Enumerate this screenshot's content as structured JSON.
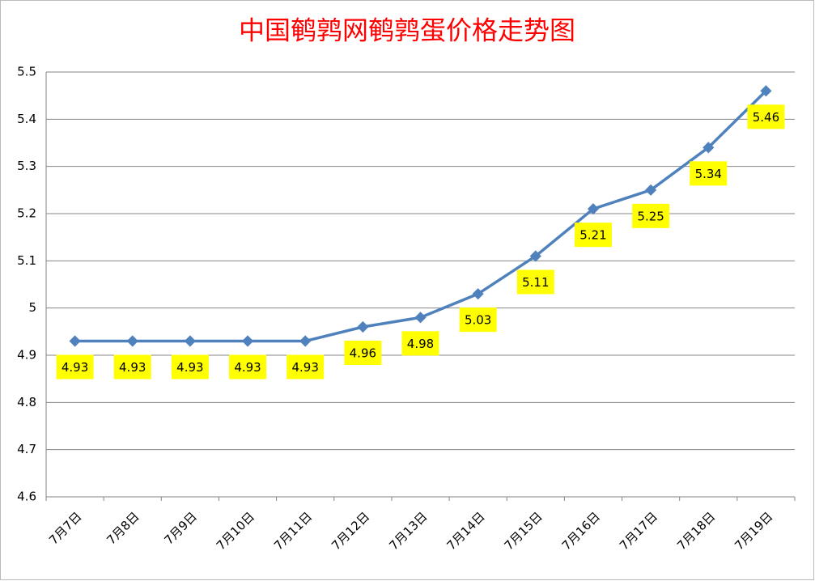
{
  "chart_data": {
    "type": "line",
    "title": "中国鹌鹑网鹌鹑蛋价格走势图",
    "categories": [
      "7月7日",
      "7月8日",
      "7月9日",
      "7月10日",
      "7月11日",
      "7月12日",
      "7月13日",
      "7月14日",
      "7月15日",
      "7月16日",
      "7月17日",
      "7月18日",
      "7月19日"
    ],
    "series": [
      {
        "color": "#4f81bd",
        "values": [
          4.93,
          4.93,
          4.93,
          4.93,
          4.93,
          4.96,
          4.98,
          5.03,
          5.11,
          5.21,
          5.25,
          5.34,
          5.46
        ]
      }
    ],
    "ylim": [
      4.6,
      5.5
    ],
    "yticks": [
      4.6,
      4.7,
      4.8,
      4.9,
      5,
      5.1,
      5.2,
      5.3,
      5.4,
      5.5
    ],
    "grid": true
  }
}
